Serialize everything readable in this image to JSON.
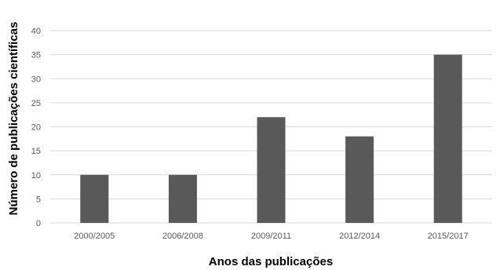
{
  "chart_data": {
    "type": "bar",
    "title": "",
    "xlabel": "Anos das publicações",
    "ylabel": "Número de publicações científicas",
    "categories": [
      "2000/2005",
      "2006/2008",
      "2009/2011",
      "2012/2014",
      "2015/2017"
    ],
    "values": [
      10,
      10,
      22,
      18,
      35
    ],
    "ylim": [
      0,
      40
    ],
    "yticks": [
      0,
      5,
      10,
      15,
      20,
      25,
      30,
      35,
      40
    ],
    "grid": true,
    "bar_color": "#595959",
    "grid_color": "#d9d9d9"
  }
}
